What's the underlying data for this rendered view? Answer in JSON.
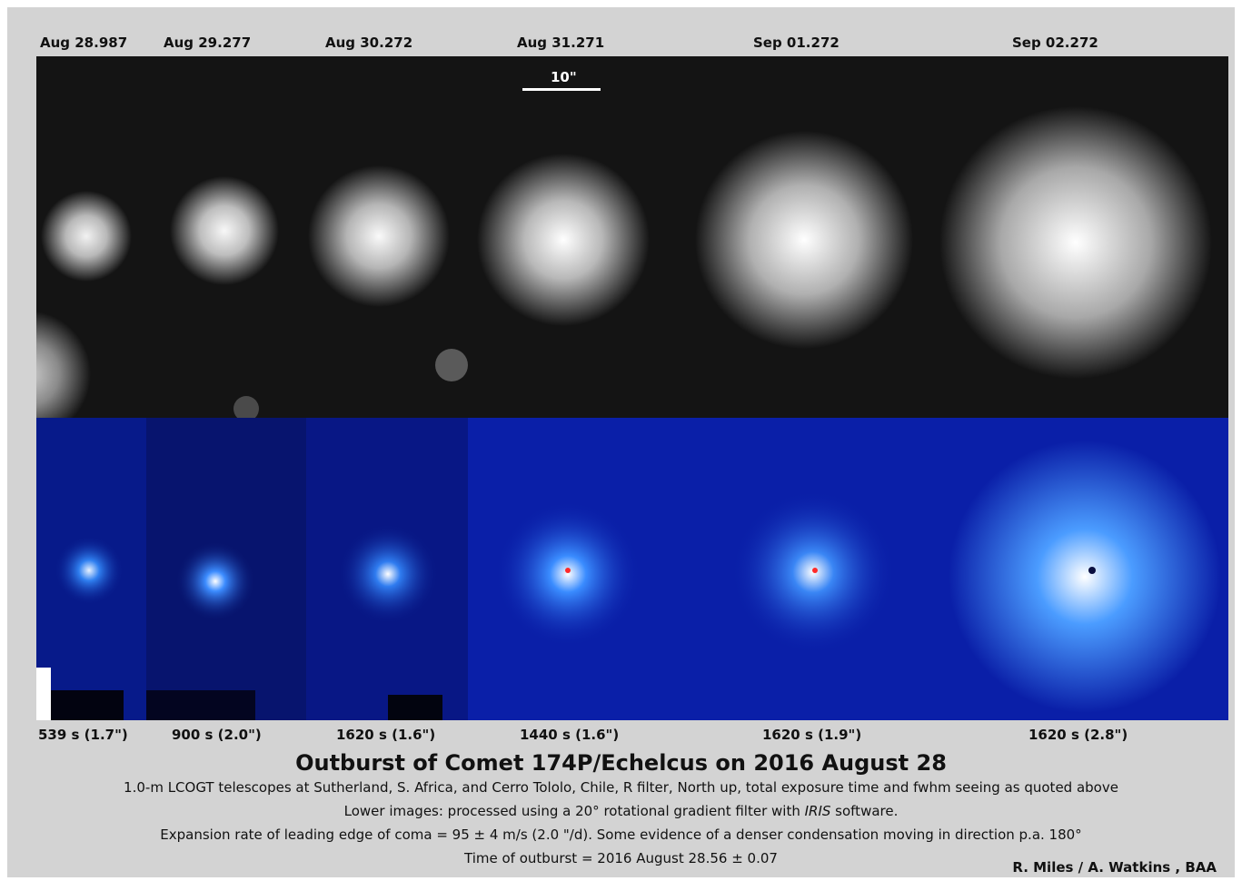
{
  "dates": [
    "Aug 28.987",
    "Aug 29.277",
    "Aug 30.272",
    "Aug 31.271",
    "Sep 01.272",
    "Sep 02.272"
  ],
  "exposures": [
    "539 s (1.7\")",
    "900 s (2.0\")",
    "1620 s (1.6\")",
    "1440 s (1.6\")",
    "1620 s (1.9\")",
    "1620 s (2.8\")"
  ],
  "scale_label": "10\"",
  "title": "Outburst of Comet 174P/Echelcus on 2016 August 28",
  "caption": {
    "line1": "1.0-m LCOGT telescopes at Sutherland, S. Africa, and Cerro Tololo, Chile, R filter, North up, total exposure time and fwhm seeing as quoted above",
    "line2_prefix": "Lower images: processed using a 20° rotational gradient filter with ",
    "line2_software": "IRIS",
    "line2_suffix": " software.",
    "line3": "Expansion rate of leading edge of coma = 95 ± 4 m/s  (2.0 \"/d). Some evidence of a denser condensation moving in direction p.a. 180°",
    "line4": "Time of outburst = 2016 August 28.56 ± 0.07"
  },
  "credit": "R. Miles / A. Watkins , BAA",
  "colors": {
    "background": "#d3d3d3",
    "enhanced_tint": "#0a1fa8"
  }
}
